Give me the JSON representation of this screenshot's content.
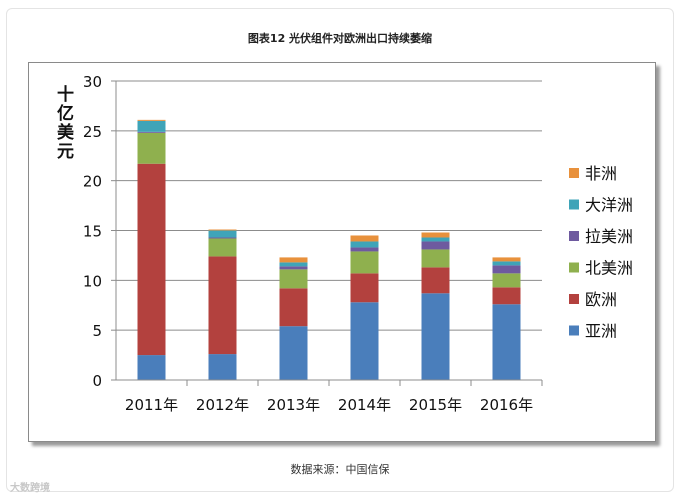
{
  "figure_title": "图表12  光伏组件对欧洲出口持续萎缩",
  "source_text": "数据来源：中国信保",
  "watermark": "大数跨境",
  "chart_data": {
    "type": "bar",
    "stacked": true,
    "ylabel": "十亿美元",
    "xlabel": "",
    "ylim": [
      0,
      30
    ],
    "yticks": [
      0,
      5,
      10,
      15,
      20,
      25,
      30
    ],
    "grid": true,
    "legend_position": "right",
    "categories": [
      "2011年",
      "2012年",
      "2013年",
      "2014年",
      "2015年",
      "2016年"
    ],
    "series": [
      {
        "name": "亚洲",
        "color": "#4a7ebb",
        "values": [
          2.5,
          2.6,
          5.4,
          7.8,
          8.7,
          7.6
        ]
      },
      {
        "name": "欧洲",
        "color": "#b3413e",
        "values": [
          19.2,
          9.8,
          3.8,
          2.9,
          2.6,
          1.7
        ]
      },
      {
        "name": "北美洲",
        "color": "#8fb04e",
        "values": [
          3.1,
          1.8,
          1.9,
          2.2,
          1.8,
          1.4
        ]
      },
      {
        "name": "拉美洲",
        "color": "#6e5a9f",
        "values": [
          0.1,
          0.1,
          0.3,
          0.4,
          0.8,
          0.8
        ]
      },
      {
        "name": "大洋洲",
        "color": "#3fa4b8",
        "values": [
          1.1,
          0.7,
          0.4,
          0.6,
          0.4,
          0.4
        ]
      },
      {
        "name": "非洲",
        "color": "#e8913c",
        "values": [
          0.1,
          0.1,
          0.5,
          0.6,
          0.5,
          0.4
        ]
      }
    ]
  }
}
